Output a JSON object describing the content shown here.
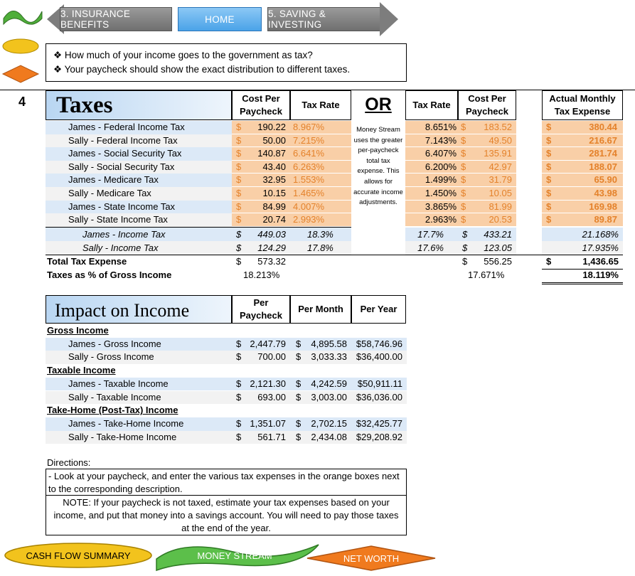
{
  "nav": {
    "prev": "3. INSURANCE BENEFITS",
    "home": "HOME",
    "next": "5. SAVING & INVESTING"
  },
  "info": [
    "How much of your income goes to the government as tax?",
    "Your paycheck should show the exact distribution to different taxes."
  ],
  "step": "4",
  "taxes": {
    "title": "Taxes",
    "col_cost": "Cost Per Paycheck",
    "col_rate": "Tax Rate",
    "or_label": "OR",
    "col_rate2": "Tax Rate",
    "col_cost2": "Cost Per Paycheck",
    "col_actual": "Actual Monthly Tax Expense",
    "note": "Money Stream uses the greater per-paycheck total tax expense. This allows for accurate income adjustments.",
    "rows": [
      {
        "label": "James - Federal Income Tax",
        "cost": "190.22",
        "rate": "8.967%",
        "rate2": "8.651%",
        "cost2": "183.52",
        "actual": "380.44"
      },
      {
        "label": "Sally - Federal Income Tax",
        "cost": "50.00",
        "rate": "7.215%",
        "rate2": "7.143%",
        "cost2": "49.50",
        "actual": "216.67"
      },
      {
        "label": "James - Social Security Tax",
        "cost": "140.87",
        "rate": "6.641%",
        "rate2": "6.407%",
        "cost2": "135.91",
        "actual": "281.74"
      },
      {
        "label": "Sally - Social Security Tax",
        "cost": "43.40",
        "rate": "6.263%",
        "rate2": "6.200%",
        "cost2": "42.97",
        "actual": "188.07"
      },
      {
        "label": "James - Medicare Tax",
        "cost": "32.95",
        "rate": "1.553%",
        "rate2": "1.499%",
        "cost2": "31.79",
        "actual": "65.90"
      },
      {
        "label": "Sally - Medicare Tax",
        "cost": "10.15",
        "rate": "1.465%",
        "rate2": "1.450%",
        "cost2": "10.05",
        "actual": "43.98"
      },
      {
        "label": "James - State Income Tax",
        "cost": "84.99",
        "rate": "4.007%",
        "rate2": "3.865%",
        "cost2": "81.99",
        "actual": "169.98"
      },
      {
        "label": "Sally - State Income Tax",
        "cost": "20.74",
        "rate": "2.993%",
        "rate2": "2.963%",
        "cost2": "20.53",
        "actual": "89.87"
      }
    ],
    "subtotals": [
      {
        "label": "James - Income Tax",
        "cost": "449.03",
        "rate": "18.3%",
        "rate2": "17.7%",
        "cost2": "433.21",
        "actual": "21.168%"
      },
      {
        "label": "Sally - Income Tax",
        "cost": "124.29",
        "rate": "17.8%",
        "rate2": "17.6%",
        "cost2": "123.05",
        "actual": "17.935%"
      }
    ],
    "total_label": "Total Tax Expense",
    "total_cost": "573.32",
    "total_cost2": "556.25",
    "total_actual": "1,436.65",
    "pct_label": "Taxes as % of Gross Income",
    "pct1": "18.213%",
    "pct2": "17.671%",
    "pct3": "18.119%",
    "currency": "$"
  },
  "impact": {
    "title": "Impact on Income",
    "col1": "Per Paycheck",
    "col2": "Per Month",
    "col3": "Per Year",
    "sections": [
      {
        "heading": "Gross Income",
        "rows": [
          {
            "label": "James - Gross Income",
            "pp": "2,447.79",
            "pm": "4,895.58",
            "py": "$58,746.96"
          },
          {
            "label": "Sally - Gross Income",
            "pp": "700.00",
            "pm": "3,033.33",
            "py": "$36,400.00"
          }
        ]
      },
      {
        "heading": "Taxable Income",
        "rows": [
          {
            "label": "James - Taxable Income",
            "pp": "2,121.30",
            "pm": "4,242.59",
            "py": "$50,911.11"
          },
          {
            "label": "Sally - Taxable Income",
            "pp": "693.00",
            "pm": "3,003.00",
            "py": "$36,036.00"
          }
        ]
      },
      {
        "heading": "Take-Home (Post-Tax) Income",
        "rows": [
          {
            "label": "James - Take-Home Income",
            "pp": "1,351.07",
            "pm": "2,702.15",
            "py": "$32,425.77"
          },
          {
            "label": "Sally - Take-Home Income",
            "pp": "561.71",
            "pm": "2,434.08",
            "py": "$29,208.92"
          }
        ]
      }
    ]
  },
  "directions": {
    "heading": "Directions:",
    "text1": "- Look at your paycheck, and enter the various tax expenses in the orange boxes next to the corresponding description.",
    "text2": "NOTE: If your paycheck is not taxed, estimate your tax expenses based on your income, and put that money into a savings account.  You will need to pay those taxes at the end of the year."
  },
  "bottom_nav": {
    "cash_flow": "CASH FLOW SUMMARY",
    "money_stream": "MONEY STREAM",
    "net_worth": "NET WORTH"
  },
  "colors": {
    "accent_blue": "#4aa3e8",
    "row_blue": "#dce9f7",
    "orange_input": "#f9cfa7",
    "orange_text": "#e4822b",
    "yellow": "#f2c31d",
    "green": "#5cbf4a"
  }
}
